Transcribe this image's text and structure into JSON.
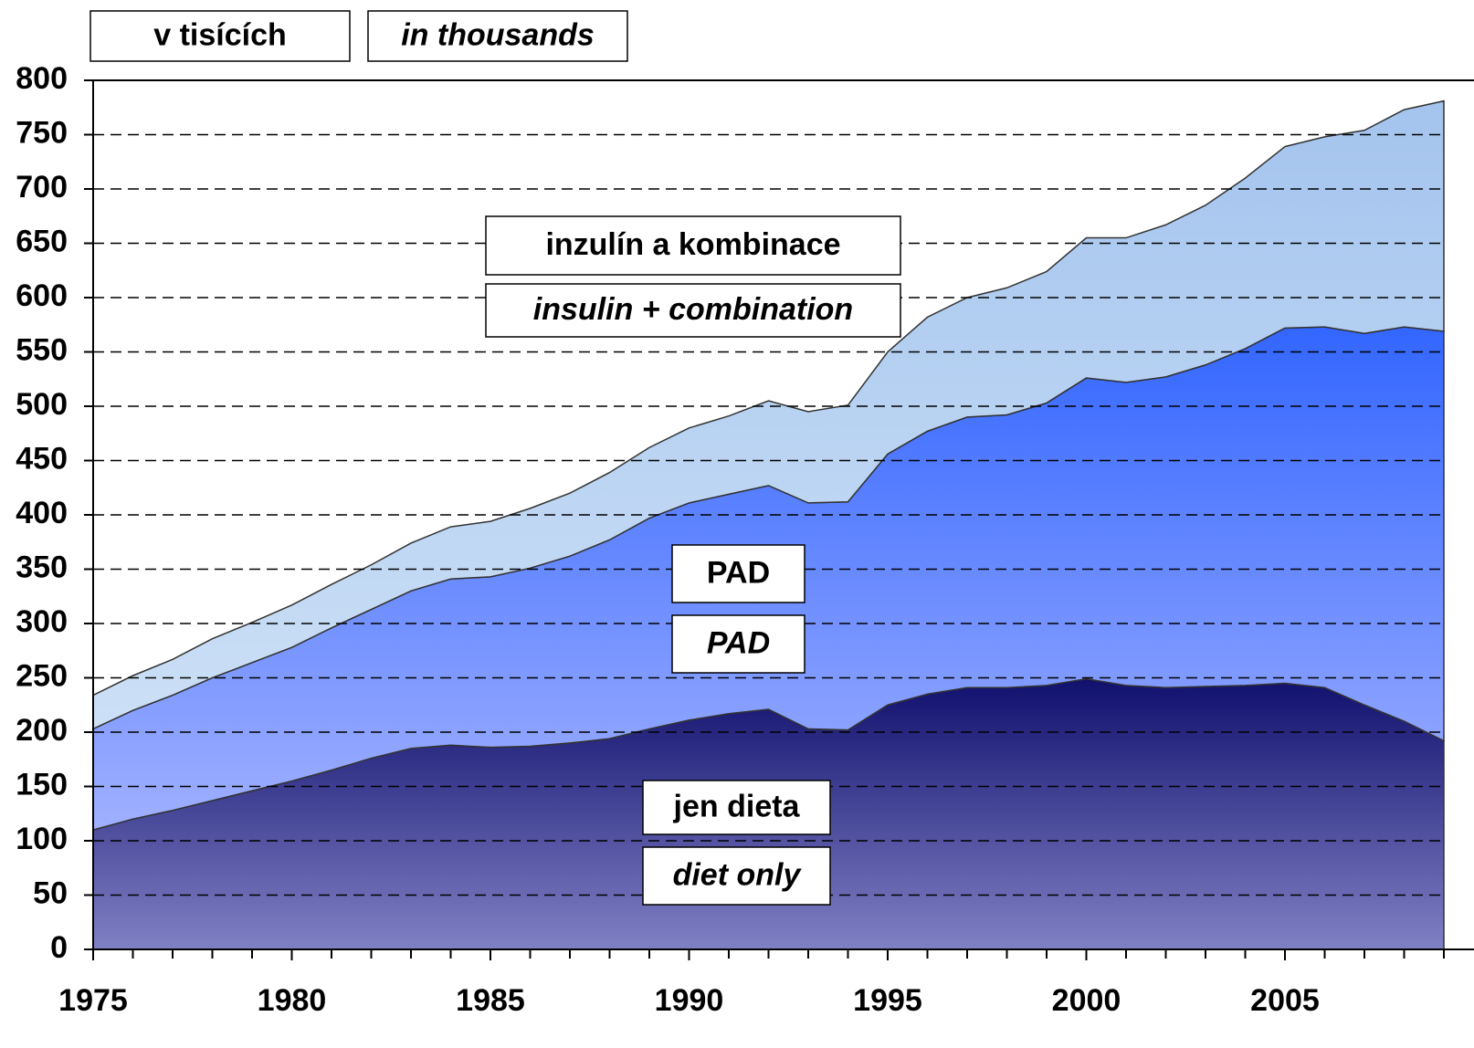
{
  "chart_data": {
    "type": "stacked-area",
    "unit_labels": [
      "v tisících",
      "in thousands"
    ],
    "x": [
      1975,
      1976,
      1977,
      1978,
      1979,
      1980,
      1981,
      1982,
      1983,
      1984,
      1985,
      1986,
      1987,
      1988,
      1989,
      1990,
      1991,
      1992,
      1993,
      1994,
      1995,
      1996,
      1997,
      1998,
      1999,
      2000,
      2001,
      2002,
      2003,
      2004,
      2005,
      2006,
      2007,
      2008,
      2009
    ],
    "xlim": [
      1975,
      2009
    ],
    "xticks": [
      1975,
      1980,
      1985,
      1990,
      1995,
      2000,
      2005
    ],
    "ylim": [
      0,
      800
    ],
    "yticks": [
      0,
      50,
      100,
      150,
      200,
      250,
      300,
      350,
      400,
      450,
      500,
      550,
      600,
      650,
      700,
      750,
      800
    ],
    "grid": true,
    "series": [
      {
        "name": "jen dieta",
        "name_en": "diet only",
        "color": "#10106e",
        "light": "#8080c4",
        "values": [
          110,
          120,
          128,
          137,
          146,
          155,
          165,
          176,
          185,
          188,
          186,
          187,
          190,
          194,
          203,
          211,
          217,
          221,
          203,
          202,
          225,
          235,
          241,
          241,
          243,
          249,
          243,
          241,
          242,
          243,
          245,
          241,
          225,
          210,
          192
        ]
      },
      {
        "name": "PAD",
        "name_en": "PAD",
        "color": "#3366ff",
        "light": "#a0b0ff",
        "values": [
          93,
          100,
          106,
          113,
          118,
          123,
          131,
          137,
          145,
          153,
          157,
          164,
          172,
          183,
          194,
          200,
          202,
          206,
          208,
          210,
          231,
          242,
          249,
          251,
          260,
          277,
          279,
          286,
          296,
          310,
          327,
          332,
          342,
          363,
          377
        ]
      },
      {
        "name": "inzulín a kombinace",
        "name_en": "insulin + combination",
        "color": "#a4c4ee",
        "light": "#cce0f6",
        "values": [
          31,
          32,
          33,
          36,
          37,
          39,
          40,
          41,
          44,
          48,
          51,
          55,
          58,
          62,
          65,
          69,
          72,
          78,
          84,
          89,
          94,
          105,
          110,
          117,
          121,
          129,
          133,
          140,
          147,
          157,
          167,
          175,
          187,
          200,
          212
        ]
      }
    ]
  }
}
